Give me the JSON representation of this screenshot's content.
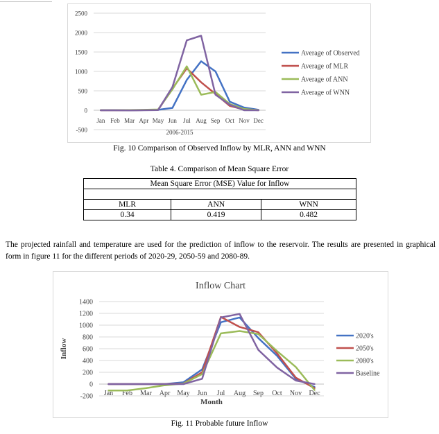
{
  "figure10": {
    "caption": "Fig. 10 Comparison of Observed Inflow by MLR, ANN and WNN",
    "chart_data": {
      "type": "line",
      "categories": [
        "Jan",
        "Feb",
        "Mar",
        "Apr",
        "May",
        "Jun",
        "Jul",
        "Aug",
        "Sep",
        "Oct",
        "Nov",
        "Dec"
      ],
      "xlabel": "2006-2015",
      "ylim": [
        -500,
        2500
      ],
      "yticks": [
        -500,
        0,
        500,
        1000,
        1500,
        2000,
        2500
      ],
      "grid": true,
      "legend": "right",
      "series": [
        {
          "name": "Average of Observed",
          "color": "#4472C4",
          "values": [
            0,
            0,
            0,
            5,
            10,
            60,
            780,
            1260,
            1000,
            220,
            70,
            10
          ]
        },
        {
          "name": "Average of MLR",
          "color": "#C0504D",
          "values": [
            0,
            0,
            0,
            5,
            10,
            560,
            1080,
            720,
            420,
            110,
            20,
            0
          ]
        },
        {
          "name": "Average of ANN",
          "color": "#9BBB59",
          "values": [
            5,
            5,
            5,
            10,
            20,
            540,
            1130,
            400,
            470,
            160,
            30,
            5
          ]
        },
        {
          "name": "Average of WNN",
          "color": "#8064A2",
          "values": [
            0,
            0,
            -5,
            0,
            5,
            600,
            1800,
            1920,
            400,
            140,
            0,
            0
          ]
        }
      ]
    }
  },
  "table4": {
    "caption": "Table 4. Comparison of Mean Square Error",
    "header": "Mean Square Error (MSE) Value for Inflow",
    "columns": [
      "MLR",
      "ANN",
      "WNN"
    ],
    "values": [
      "0.34",
      "0.419",
      "0.482"
    ]
  },
  "paragraph": "The projected rainfall and temperature are used for the prediction of inflow to the reservoir. The results are presented in graphical form in figure 11 for the different periods of 2020-29, 2050-59 and 2080-89.",
  "figure11": {
    "caption": "Fig. 11 Probable future Inflow",
    "chart_data": {
      "type": "line",
      "title": "Inflow Chart",
      "categories": [
        "Jan",
        "Feb",
        "Mar",
        "Apr",
        "May",
        "Jun",
        "Jul",
        "Aug",
        "Sep",
        "Oct",
        "Nov",
        "Dec"
      ],
      "xlabel": "Month",
      "ylabel": "Inflow",
      "ylim": [
        -200,
        1400
      ],
      "yticks": [
        -200,
        0,
        200,
        400,
        600,
        800,
        1000,
        1200,
        1400
      ],
      "grid": true,
      "legend": "right",
      "series": [
        {
          "name": "2020's",
          "color": "#4472C4",
          "values": [
            0,
            0,
            0,
            0,
            30,
            250,
            1050,
            1130,
            780,
            480,
            90,
            -50
          ]
        },
        {
          "name": "2050's",
          "color": "#C0504D",
          "values": [
            0,
            0,
            0,
            0,
            10,
            200,
            1140,
            970,
            880,
            520,
            110,
            -70
          ]
        },
        {
          "name": "2080's",
          "color": "#9BBB59",
          "values": [
            -110,
            -110,
            -70,
            -20,
            10,
            170,
            860,
            900,
            850,
            560,
            290,
            -100
          ]
        },
        {
          "name": "Baseline",
          "color": "#8064A2",
          "values": [
            0,
            0,
            0,
            0,
            0,
            90,
            1130,
            1190,
            580,
            280,
            60,
            0
          ]
        }
      ]
    }
  }
}
